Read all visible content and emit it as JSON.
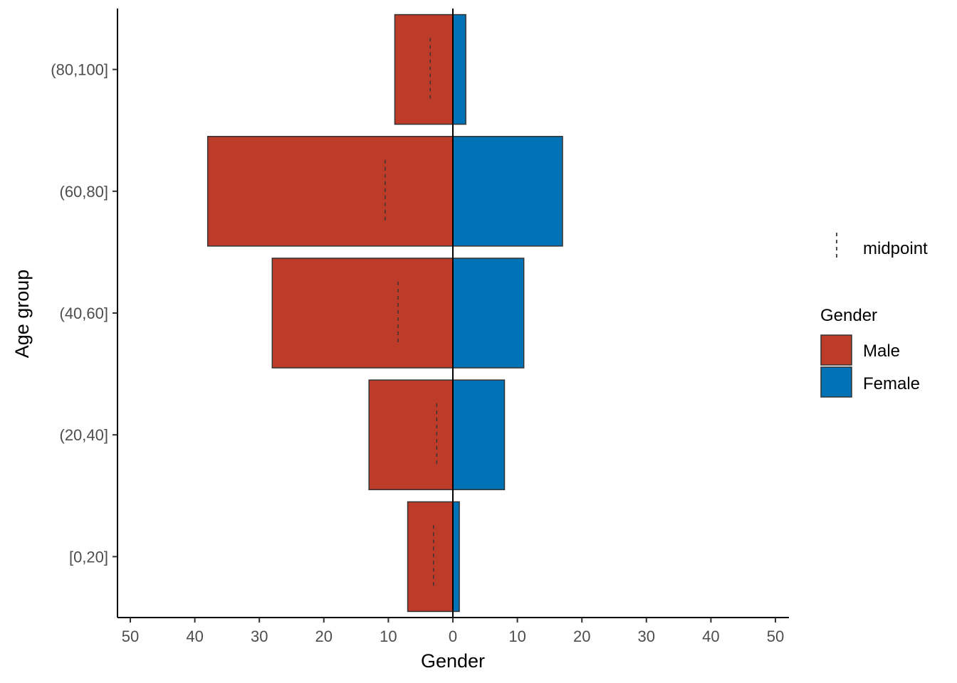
{
  "chart_data": {
    "type": "bar",
    "orientation": "horizontal",
    "style": "population-pyramid",
    "xlabel": "Gender",
    "ylabel": "Age group",
    "xlim": [
      -50,
      50
    ],
    "x_ticks": [
      -50,
      -40,
      -30,
      -20,
      -10,
      0,
      10,
      20,
      30,
      40,
      50
    ],
    "x_tick_labels": [
      "50",
      "40",
      "30",
      "20",
      "10",
      "0",
      "10",
      "20",
      "30",
      "40",
      "50"
    ],
    "categories": [
      "[0,20]",
      "(20,40]",
      "(40,60]",
      "(60,80]",
      "(80,100]"
    ],
    "series": [
      {
        "name": "Male",
        "values": [
          7,
          13,
          28,
          38,
          9
        ],
        "color": "#BC3C29",
        "direction": "left"
      },
      {
        "name": "Female",
        "values": [
          1,
          8,
          11,
          17,
          2
        ],
        "color": "#0072B5",
        "direction": "right"
      }
    ],
    "midpoint": {
      "name": "midpoint",
      "values": [
        3,
        2.5,
        8.5,
        10.5,
        3.5
      ],
      "side": "left",
      "linetype": "dashed"
    },
    "legend": {
      "position": "right",
      "linetype_entry": "midpoint",
      "fill_title": "Gender",
      "fill_entries": [
        "Male",
        "Female"
      ]
    },
    "grid": false,
    "zero_line": true
  }
}
